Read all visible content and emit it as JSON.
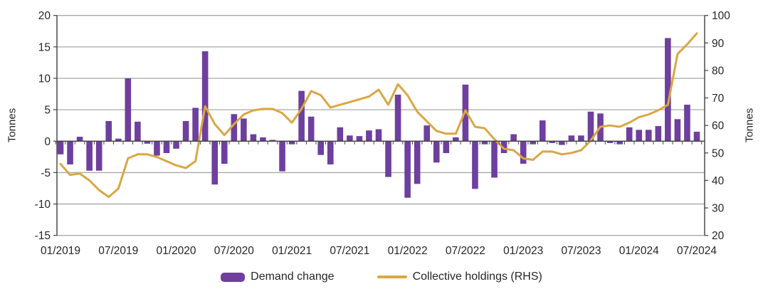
{
  "colors": {
    "bar_purple": "#6e3f9e",
    "line_gold": "#d9a743",
    "gridline_gray": "#a8a8a8",
    "axis_dark": "#3f3f3f",
    "text_dark": "#262626",
    "background": "#ffffff"
  },
  "chart_data": {
    "type": "combo",
    "categories": [
      "01/2019",
      "02/2019",
      "03/2019",
      "04/2019",
      "05/2019",
      "06/2019",
      "07/2019",
      "08/2019",
      "09/2019",
      "10/2019",
      "11/2019",
      "12/2019",
      "01/2020",
      "02/2020",
      "03/2020",
      "04/2020",
      "05/2020",
      "06/2020",
      "07/2020",
      "08/2020",
      "09/2020",
      "10/2020",
      "11/2020",
      "12/2020",
      "01/2021",
      "02/2021",
      "03/2021",
      "04/2021",
      "05/2021",
      "06/2021",
      "07/2021",
      "08/2021",
      "09/2021",
      "10/2021",
      "11/2021",
      "12/2021",
      "01/2022",
      "02/2022",
      "03/2022",
      "04/2022",
      "05/2022",
      "06/2022",
      "07/2022",
      "08/2022",
      "09/2022",
      "10/2022",
      "11/2022",
      "12/2022",
      "01/2023",
      "02/2023",
      "03/2023",
      "04/2023",
      "05/2023",
      "06/2023",
      "07/2023",
      "08/2023",
      "09/2023",
      "10/2023",
      "11/2023",
      "12/2023",
      "01/2024",
      "02/2024",
      "03/2024",
      "04/2024",
      "05/2024",
      "06/2024",
      "07/2024"
    ],
    "series": [
      {
        "name": "Demand change",
        "type": "bar",
        "axis": "left",
        "color": "#6e3f9e",
        "values": [
          -2.1,
          -3.7,
          0.7,
          -4.7,
          -4.7,
          3.2,
          0.4,
          10.0,
          3.1,
          -0.4,
          -2.3,
          -1.9,
          -1.2,
          3.2,
          5.3,
          14.3,
          -6.9,
          -3.6,
          4.3,
          3.6,
          1.1,
          0.6,
          0.2,
          -4.8,
          -0.5,
          8.0,
          3.9,
          -2.2,
          -3.7,
          2.2,
          0.9,
          0.8,
          1.7,
          1.9,
          -5.7,
          7.4,
          -9.0,
          -6.8,
          2.5,
          -3.4,
          -1.9,
          0.6,
          9.0,
          -7.6,
          -0.5,
          -5.8,
          -1.9,
          1.1,
          -3.6,
          -0.5,
          3.3,
          -0.3,
          -0.6,
          0.9,
          0.9,
          4.7,
          4.4,
          -0.3,
          -0.5,
          2.2,
          1.8,
          1.8,
          2.4,
          16.4,
          3.5,
          5.8,
          1.5
        ]
      },
      {
        "name": "Collective holdings (RHS)",
        "type": "line",
        "axis": "right",
        "color": "#d9a743",
        "values": [
          46,
          42,
          42.5,
          40,
          36.5,
          34,
          37,
          48,
          49.5,
          49.5,
          48.5,
          47,
          45.5,
          44.5,
          47,
          67,
          60.5,
          56.5,
          60.5,
          64,
          65.5,
          66,
          66,
          64.5,
          61,
          66,
          72.5,
          71,
          66.5,
          67.5,
          68.5,
          69.5,
          70.5,
          73,
          67.5,
          75,
          71,
          65,
          61.5,
          58,
          57,
          57,
          65.5,
          59.5,
          59,
          55,
          51.5,
          51,
          48,
          47.5,
          50.5,
          50.5,
          49.5,
          50,
          51,
          54.5,
          59.5,
          60,
          59.5,
          61,
          63,
          64,
          65.5,
          67.5,
          86,
          89.5,
          93.5
        ]
      }
    ],
    "left_axis": {
      "label": "Tonnes",
      "min": -15,
      "max": 20,
      "ticks": [
        20,
        15,
        10,
        5,
        0,
        -5,
        -10,
        -15
      ]
    },
    "right_axis": {
      "label": "Tonnes",
      "min": 20,
      "max": 100,
      "ticks": [
        100,
        90,
        80,
        70,
        60,
        50,
        40,
        30,
        20
      ]
    },
    "x_tick_labels": [
      "01/2019",
      "07/2019",
      "01/2020",
      "07/2020",
      "01/2021",
      "07/2021",
      "01/2022",
      "07/2022",
      "01/2023",
      "07/2023",
      "01/2024",
      "07/2024"
    ],
    "x_tick_every": 6,
    "grid": true,
    "legend_position": "bottom"
  }
}
